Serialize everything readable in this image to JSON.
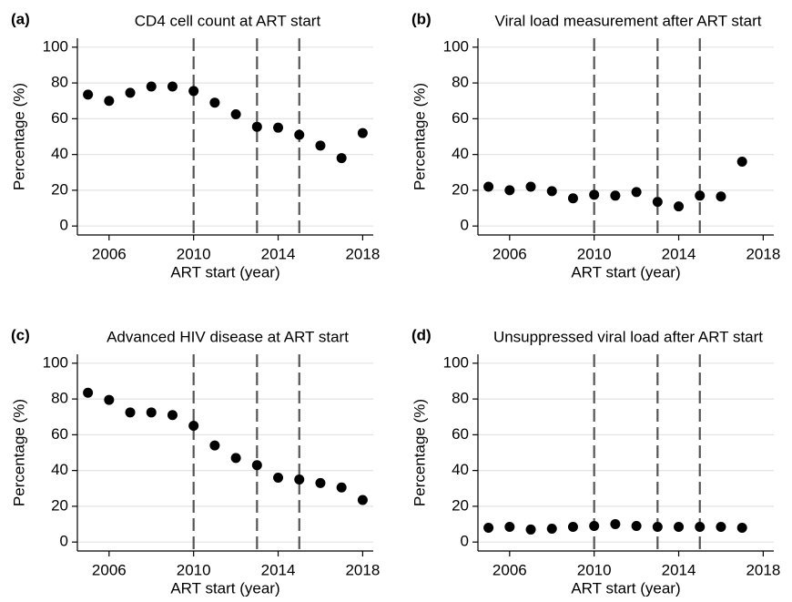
{
  "chart_data": [
    {
      "type": "scatter",
      "panel_label": "(a)",
      "title": "CD4 cell count at ART start",
      "x_label": "ART start (year)",
      "y_label": "Percentage (%)",
      "x": [
        2005,
        2006,
        2007,
        2008,
        2009,
        2010,
        2011,
        2012,
        2013,
        2014,
        2015,
        2016,
        2017,
        2018
      ],
      "values": [
        73.5,
        70,
        74.5,
        78,
        78,
        75.5,
        69,
        62.5,
        55.5,
        55,
        51,
        45,
        38,
        52
      ],
      "color": "#000000",
      "xlim": [
        2004.5,
        2018.5
      ],
      "ylim": [
        -5,
        105
      ],
      "xticks": [
        2006,
        2010,
        2014,
        2018
      ],
      "yticks": [
        0,
        20,
        40,
        60,
        80,
        100
      ],
      "vlines": [
        2010,
        2013,
        2015
      ],
      "grid": true
    },
    {
      "type": "scatter",
      "panel_label": "(b)",
      "title": "Viral load measurement after ART start",
      "x_label": "ART start (year)",
      "y_label": "Percentage (%)",
      "x": [
        2005,
        2006,
        2007,
        2008,
        2009,
        2010,
        2011,
        2012,
        2013,
        2014,
        2015,
        2016,
        2017
      ],
      "values": [
        22,
        20,
        22,
        19.5,
        15.5,
        17.5,
        17,
        19,
        13.5,
        11,
        17,
        16.5,
        36
      ],
      "color": "#000000",
      "xlim": [
        2004.5,
        2018.5
      ],
      "ylim": [
        -5,
        105
      ],
      "xticks": [
        2006,
        2010,
        2014,
        2018
      ],
      "yticks": [
        0,
        20,
        40,
        60,
        80,
        100
      ],
      "vlines": [
        2010,
        2013,
        2015
      ],
      "grid": true
    },
    {
      "type": "scatter",
      "panel_label": "(c)",
      "title": "Advanced HIV disease at ART start",
      "x_label": "ART start (year)",
      "y_label": "Percentage (%)",
      "x": [
        2005,
        2006,
        2007,
        2008,
        2009,
        2010,
        2011,
        2012,
        2013,
        2014,
        2015,
        2016,
        2017,
        2018
      ],
      "values": [
        83.5,
        79.5,
        72.5,
        72.5,
        71,
        65,
        54,
        47,
        43,
        36,
        35,
        33,
        30.5,
        23.5
      ],
      "color": "#000000",
      "xlim": [
        2004.5,
        2018.5
      ],
      "ylim": [
        -5,
        105
      ],
      "xticks": [
        2006,
        2010,
        2014,
        2018
      ],
      "yticks": [
        0,
        20,
        40,
        60,
        80,
        100
      ],
      "vlines": [
        2010,
        2013,
        2015
      ],
      "grid": true
    },
    {
      "type": "scatter",
      "panel_label": "(d)",
      "title": "Unsuppressed viral load after ART start",
      "x_label": "ART start (year)",
      "y_label": "Percentage (%)",
      "x": [
        2005,
        2006,
        2007,
        2008,
        2009,
        2010,
        2011,
        2012,
        2013,
        2014,
        2015,
        2016,
        2017
      ],
      "values": [
        8,
        8.5,
        7,
        7.5,
        8.5,
        9,
        10,
        9,
        8.5,
        8.5,
        8.5,
        8.5,
        8
      ],
      "color": "#000000",
      "xlim": [
        2004.5,
        2018.5
      ],
      "ylim": [
        -5,
        105
      ],
      "xticks": [
        2006,
        2010,
        2014,
        2018
      ],
      "yticks": [
        0,
        20,
        40,
        60,
        80,
        100
      ],
      "vlines": [
        2010,
        2013,
        2015
      ],
      "grid": true
    }
  ]
}
